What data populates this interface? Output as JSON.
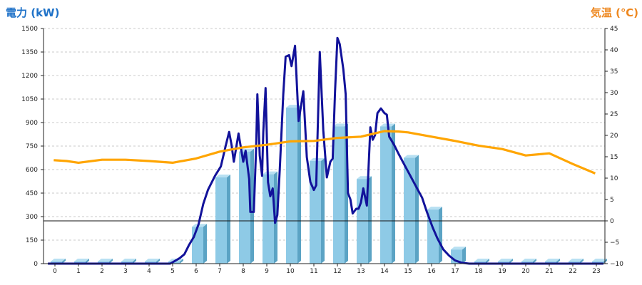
{
  "chart_data": {
    "type": "bar",
    "labels": {
      "left_axis": "電力 (kW)",
      "right_axis": "気温 (℃)"
    },
    "colors": {
      "bar_front": "#8ecae6",
      "bar_side": "#5ba3c4",
      "bar_top": "#b8e0f2",
      "power_line": "#12129a",
      "temp_line": "#ffa500",
      "left_label": "#1f72c8",
      "right_label": "#ee8820",
      "grid": "#c8c8c8"
    },
    "x": {
      "categories": [
        "0",
        "1",
        "2",
        "3",
        "4",
        "5",
        "6",
        "7",
        "8",
        "9",
        "10",
        "11",
        "12",
        "13",
        "14",
        "15",
        "16",
        "17",
        "18",
        "19",
        "20",
        "21",
        "22",
        "23"
      ]
    },
    "y_left": {
      "min": 0,
      "max": 1500,
      "ticks": [
        "0",
        "150",
        "300",
        "450",
        "600",
        "750",
        "900",
        "1050",
        "1200",
        "1350",
        "1500"
      ]
    },
    "y_right": {
      "min": -10,
      "max": 45,
      "ticks": [
        "−10",
        "−5",
        "0",
        "5",
        "10",
        "15",
        "20",
        "25",
        "30",
        "35",
        "40",
        "45"
      ]
    },
    "grid": true,
    "series": [
      {
        "kind": "bar",
        "axis": "left",
        "values": [
          5,
          5,
          5,
          5,
          5,
          10,
          235,
          550,
          715,
          570,
          995,
          655,
          875,
          540,
          875,
          675,
          345,
          90,
          5,
          5,
          5,
          5,
          5,
          5
        ]
      },
      {
        "kind": "line",
        "axis": "left",
        "points": [
          [
            -0.3,
            0
          ],
          [
            4.9,
            0
          ],
          [
            5.3,
            35
          ],
          [
            5.5,
            60
          ],
          [
            5.7,
            120
          ],
          [
            5.9,
            170
          ],
          [
            6.1,
            250
          ],
          [
            6.3,
            380
          ],
          [
            6.5,
            470
          ],
          [
            6.8,
            560
          ],
          [
            7.05,
            620
          ],
          [
            7.25,
            750
          ],
          [
            7.4,
            840
          ],
          [
            7.5,
            760
          ],
          [
            7.6,
            650
          ],
          [
            7.7,
            740
          ],
          [
            7.8,
            830
          ],
          [
            7.9,
            740
          ],
          [
            8.0,
            650
          ],
          [
            8.1,
            720
          ],
          [
            8.25,
            540
          ],
          [
            8.3,
            330
          ],
          [
            8.45,
            330
          ],
          [
            8.55,
            760
          ],
          [
            8.6,
            1080
          ],
          [
            8.7,
            690
          ],
          [
            8.8,
            560
          ],
          [
            8.85,
            840
          ],
          [
            8.95,
            1120
          ],
          [
            9.05,
            520
          ],
          [
            9.15,
            430
          ],
          [
            9.25,
            480
          ],
          [
            9.35,
            260
          ],
          [
            9.45,
            310
          ],
          [
            9.55,
            600
          ],
          [
            9.7,
            1080
          ],
          [
            9.8,
            1320
          ],
          [
            9.95,
            1330
          ],
          [
            10.05,
            1260
          ],
          [
            10.2,
            1390
          ],
          [
            10.35,
            910
          ],
          [
            10.45,
            1000
          ],
          [
            10.55,
            1100
          ],
          [
            10.7,
            680
          ],
          [
            10.85,
            520
          ],
          [
            11.0,
            470
          ],
          [
            11.1,
            500
          ],
          [
            11.25,
            1350
          ],
          [
            11.4,
            850
          ],
          [
            11.55,
            550
          ],
          [
            11.7,
            650
          ],
          [
            11.8,
            670
          ],
          [
            11.9,
            1100
          ],
          [
            12.0,
            1440
          ],
          [
            12.1,
            1400
          ],
          [
            12.25,
            1240
          ],
          [
            12.35,
            1080
          ],
          [
            12.45,
            450
          ],
          [
            12.55,
            410
          ],
          [
            12.65,
            320
          ],
          [
            12.8,
            350
          ],
          [
            12.9,
            350
          ],
          [
            13.0,
            390
          ],
          [
            13.1,
            480
          ],
          [
            13.25,
            370
          ],
          [
            13.4,
            870
          ],
          [
            13.5,
            790
          ],
          [
            13.6,
            820
          ],
          [
            13.7,
            960
          ],
          [
            13.85,
            990
          ],
          [
            14.0,
            960
          ],
          [
            14.1,
            950
          ],
          [
            14.2,
            810
          ],
          [
            14.4,
            760
          ],
          [
            14.6,
            700
          ],
          [
            14.85,
            630
          ],
          [
            15.1,
            560
          ],
          [
            15.35,
            490
          ],
          [
            15.6,
            420
          ],
          [
            15.8,
            330
          ],
          [
            16.05,
            230
          ],
          [
            16.25,
            160
          ],
          [
            16.5,
            90
          ],
          [
            16.75,
            50
          ],
          [
            17.0,
            20
          ],
          [
            17.3,
            5
          ],
          [
            17.6,
            0
          ],
          [
            23.3,
            0
          ]
        ]
      },
      {
        "kind": "line",
        "axis": "right",
        "points": [
          [
            -0.05,
            14.2
          ],
          [
            0.5,
            14.0
          ],
          [
            1.0,
            13.6
          ],
          [
            2.0,
            14.3
          ],
          [
            3.0,
            14.3
          ],
          [
            4.0,
            14.0
          ],
          [
            5.0,
            13.6
          ],
          [
            6.0,
            14.6
          ],
          [
            7.0,
            16.2
          ],
          [
            8.0,
            17.2
          ],
          [
            9.0,
            17.8
          ],
          [
            10.0,
            18.6
          ],
          [
            11.0,
            18.7
          ],
          [
            12.0,
            19.4
          ],
          [
            13.0,
            19.7
          ],
          [
            14.0,
            21.0
          ],
          [
            14.6,
            20.9
          ],
          [
            15.0,
            20.7
          ],
          [
            16.0,
            19.7
          ],
          [
            17.0,
            18.7
          ],
          [
            18.0,
            17.6
          ],
          [
            19.0,
            16.8
          ],
          [
            20.0,
            15.3
          ],
          [
            21.0,
            15.8
          ],
          [
            22.0,
            13.3
          ],
          [
            22.95,
            11.1
          ]
        ]
      }
    ]
  }
}
